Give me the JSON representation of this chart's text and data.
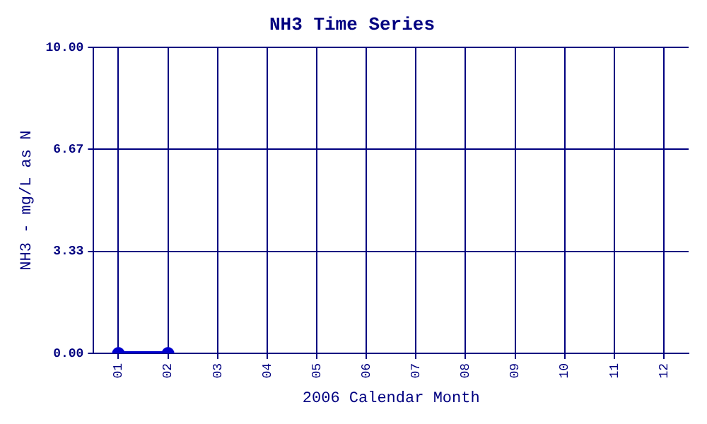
{
  "chart_data": {
    "type": "line",
    "title": "NH3 Time Series",
    "xlabel": "2006 Calendar Month",
    "ylabel": "NH3 - mg/L as N",
    "categories": [
      "01",
      "02",
      "03",
      "04",
      "05",
      "06",
      "07",
      "08",
      "09",
      "10",
      "11",
      "12"
    ],
    "series": [
      {
        "color": "#0000cc",
        "values": [
          0,
          0,
          null,
          null,
          null,
          null,
          null,
          null,
          null,
          null,
          null,
          null
        ]
      }
    ],
    "ylim": [
      0,
      10
    ],
    "yticks": [
      {
        "value": 0,
        "label": "0.00"
      },
      {
        "value": 3.33,
        "label": "3.33"
      },
      {
        "value": 6.67,
        "label": "6.67"
      },
      {
        "value": 10,
        "label": "10.00"
      }
    ],
    "grid": true,
    "marker": "circle",
    "legend": false
  }
}
